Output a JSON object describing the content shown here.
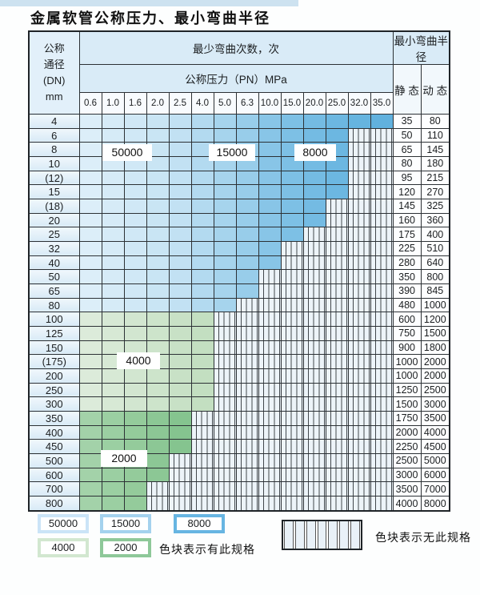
{
  "title": "金属软管公称压力、最小弯曲半径",
  "table": {
    "corner_header": [
      "公称",
      "通径",
      "(DN)",
      "mm"
    ],
    "bend_cycles_header": "最少弯曲次数，次",
    "pressure_header": "公称压力（PN）MPa",
    "pressure_columns": [
      "0.6",
      "1.0",
      "1.6",
      "2.0",
      "2.5",
      "4.0",
      "5.0",
      "6.3",
      "10.0",
      "15.0",
      "20.0",
      "25.0",
      "32.0",
      "35.0"
    ],
    "radius_header": "最小弯曲半径",
    "static_header": "静 态",
    "dynamic_header": "动 态",
    "rows": [
      {
        "dn": "4",
        "zone": "blue",
        "last": 13,
        "s": "35",
        "d": "80"
      },
      {
        "dn": "6",
        "zone": "blue",
        "last": 11,
        "s": "50",
        "d": "110"
      },
      {
        "dn": "8",
        "zone": "blue",
        "last": 11,
        "s": "65",
        "d": "145"
      },
      {
        "dn": "10",
        "zone": "blue",
        "last": 11,
        "s": "80",
        "d": "180"
      },
      {
        "dn": "(12)",
        "zone": "blue",
        "last": 11,
        "s": "95",
        "d": "215"
      },
      {
        "dn": "15",
        "zone": "blue",
        "last": 11,
        "s": "120",
        "d": "270"
      },
      {
        "dn": "(18)",
        "zone": "blue",
        "last": 10,
        "s": "145",
        "d": "325"
      },
      {
        "dn": "20",
        "zone": "blue",
        "last": 10,
        "s": "160",
        "d": "360"
      },
      {
        "dn": "25",
        "zone": "blue",
        "last": 9,
        "s": "175",
        "d": "400"
      },
      {
        "dn": "32",
        "zone": "blue",
        "last": 8,
        "s": "225",
        "d": "510"
      },
      {
        "dn": "40",
        "zone": "blue",
        "last": 8,
        "s": "280",
        "d": "640"
      },
      {
        "dn": "50",
        "zone": "blue",
        "last": 7,
        "s": "350",
        "d": "800"
      },
      {
        "dn": "65",
        "zone": "blue",
        "last": 7,
        "s": "390",
        "d": "845"
      },
      {
        "dn": "80",
        "zone": "blue",
        "last": 6,
        "s": "480",
        "d": "1000"
      },
      {
        "dn": "100",
        "zone": "g4",
        "last": 5,
        "s": "600",
        "d": "1200"
      },
      {
        "dn": "125",
        "zone": "g4",
        "last": 5,
        "s": "750",
        "d": "1500"
      },
      {
        "dn": "150",
        "zone": "g4",
        "last": 5,
        "s": "900",
        "d": "1800"
      },
      {
        "dn": "(175)",
        "zone": "g4",
        "last": 5,
        "s": "1000",
        "d": "2000"
      },
      {
        "dn": "200",
        "zone": "g4",
        "last": 5,
        "s": "1000",
        "d": "2000"
      },
      {
        "dn": "250",
        "zone": "g4",
        "last": 5,
        "s": "1250",
        "d": "2500"
      },
      {
        "dn": "300",
        "zone": "g4",
        "last": 5,
        "s": "1500",
        "d": "3000"
      },
      {
        "dn": "350",
        "zone": "g2",
        "last": 4,
        "s": "1750",
        "d": "3500"
      },
      {
        "dn": "400",
        "zone": "g2",
        "last": 4,
        "s": "2000",
        "d": "4000"
      },
      {
        "dn": "450",
        "zone": "g2",
        "last": 4,
        "s": "2250",
        "d": "4500"
      },
      {
        "dn": "500",
        "zone": "g2",
        "last": 3,
        "s": "2500",
        "d": "5000"
      },
      {
        "dn": "600",
        "zone": "g2",
        "last": 3,
        "s": "3000",
        "d": "6000"
      },
      {
        "dn": "700",
        "zone": "g2",
        "last": 2,
        "s": "3500",
        "d": "7000"
      },
      {
        "dn": "800",
        "zone": "g2",
        "last": 2,
        "s": "4000",
        "d": "8000"
      }
    ]
  },
  "overlays": [
    {
      "text": "50000"
    },
    {
      "text": "15000"
    },
    {
      "text": "8000"
    },
    {
      "text": "4000"
    },
    {
      "text": "2000"
    }
  ],
  "legend": {
    "items": [
      {
        "label": "50000",
        "color": "#cbe4f7"
      },
      {
        "label": "15000",
        "color": "#a4d2ee"
      },
      {
        "label": "8000",
        "color": "#67b5e2"
      },
      {
        "label": "4000",
        "color": "#d2e7d0"
      },
      {
        "label": "2000",
        "color": "#8ec899"
      }
    ],
    "has_spec_text": "色块表示有此规格",
    "no_spec_text": "色块表示无此规格"
  },
  "colors": {
    "blue": [
      "#dceef9",
      "#d6ebf7",
      "#d0e8f6",
      "#c9e5f4",
      "#c2e1f3",
      "#b3daf0",
      "#a6d4ed",
      "#98cdea",
      "#88c5e7",
      "#7dc0e5",
      "#74bbe3",
      "#6cb7e1",
      "#66b4df",
      "#61b1de"
    ],
    "g4": [
      "#dcebda",
      "#d7e9d5",
      "#d2e6d0",
      "#cde4cb",
      "#c8e1c6",
      "#c3dfc1"
    ],
    "g2": [
      "#a3d2a9",
      "#9bcfa2",
      "#94cb9b",
      "#8cc795",
      "#85c48f"
    ]
  }
}
